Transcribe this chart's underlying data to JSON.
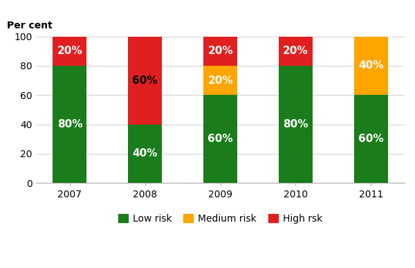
{
  "categories": [
    "2007",
    "2008",
    "2009",
    "2010",
    "2011"
  ],
  "low_risk": [
    80,
    40,
    60,
    80,
    60
  ],
  "medium_risk": [
    0,
    0,
    20,
    0,
    40
  ],
  "high_risk": [
    20,
    60,
    20,
    20,
    0
  ],
  "low_color": "#1a7c1a",
  "medium_color": "#ffa500",
  "high_color": "#e02020",
  "ylabel": "Per cent",
  "ylim": [
    0,
    100
  ],
  "yticks": [
    0,
    20,
    40,
    60,
    80,
    100
  ],
  "legend_labels": [
    "Low risk",
    "Medium risk",
    "High rsk"
  ],
  "bar_width": 0.45,
  "label_fontsize": 11,
  "axis_fontsize": 10,
  "legend_fontsize": 10,
  "label_colors_low": [
    "white",
    "white",
    "white",
    "white",
    "white"
  ],
  "label_colors_med": [
    "white",
    "white",
    "white",
    "white",
    "white"
  ],
  "label_colors_high": [
    "white",
    "black",
    "white",
    "white",
    "white"
  ]
}
